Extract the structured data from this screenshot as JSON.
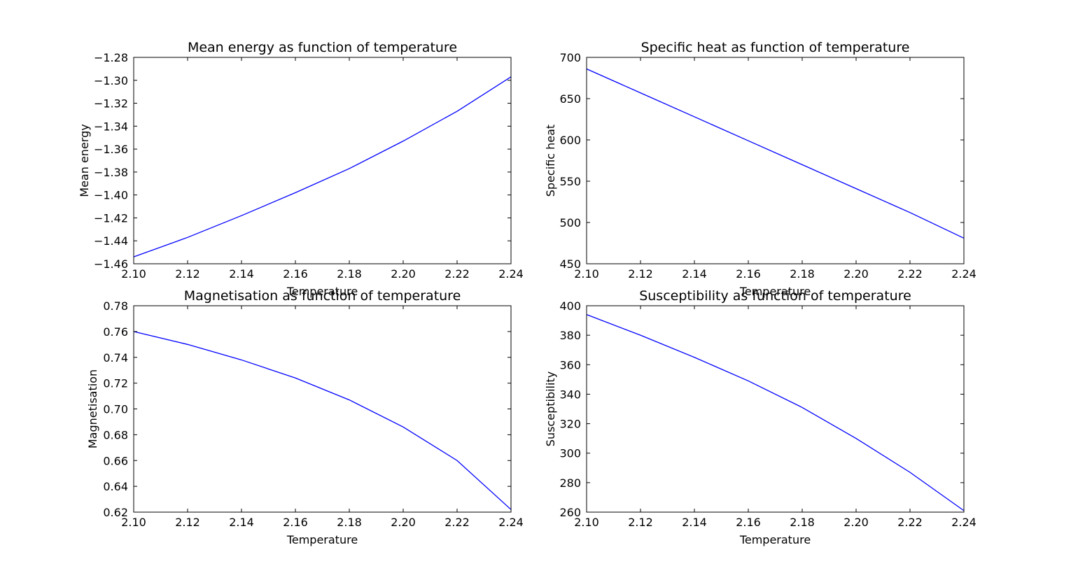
{
  "chart_data": [
    {
      "type": "line",
      "title": "Mean energy as function of temperature",
      "xlabel": "Temperature",
      "ylabel": "Mean energy",
      "xlim": [
        2.1,
        2.24
      ],
      "ylim": [
        -1.46,
        -1.28
      ],
      "xticks": [
        "2.10",
        "2.12",
        "2.14",
        "2.16",
        "2.18",
        "2.20",
        "2.22",
        "2.24"
      ],
      "yticks": [
        "−1.28",
        "−1.30",
        "−1.32",
        "−1.34",
        "−1.36",
        "−1.38",
        "−1.40",
        "−1.42",
        "−1.44",
        "−1.46"
      ],
      "grid": false,
      "line_color": "#0000ff",
      "series": [
        {
          "x": [
            2.1,
            2.12,
            2.14,
            2.16,
            2.18,
            2.2,
            2.22,
            2.24
          ],
          "y": [
            -1.454,
            -1.437,
            -1.418,
            -1.398,
            -1.377,
            -1.353,
            -1.327,
            -1.297
          ]
        }
      ]
    },
    {
      "type": "line",
      "title": "Specific heat as function of temperature",
      "xlabel": "Temperature",
      "ylabel": "Specific heat",
      "xlim": [
        2.1,
        2.24
      ],
      "ylim": [
        450,
        700
      ],
      "xticks": [
        "2.10",
        "2.12",
        "2.14",
        "2.16",
        "2.18",
        "2.20",
        "2.22",
        "2.24"
      ],
      "yticks": [
        "700",
        "650",
        "600",
        "550",
        "500",
        "450"
      ],
      "grid": false,
      "line_color": "#0000ff",
      "series": [
        {
          "x": [
            2.1,
            2.12,
            2.14,
            2.16,
            2.18,
            2.2,
            2.22,
            2.24
          ],
          "y": [
            686,
            657,
            628,
            599,
            570,
            541,
            512,
            481
          ]
        }
      ]
    },
    {
      "type": "line",
      "title": "Magnetisation as function of temperature",
      "xlabel": "Temperature",
      "ylabel": "Magnetisation",
      "xlim": [
        2.1,
        2.24
      ],
      "ylim": [
        0.62,
        0.78
      ],
      "xticks": [
        "2.10",
        "2.12",
        "2.14",
        "2.16",
        "2.18",
        "2.20",
        "2.22",
        "2.24"
      ],
      "yticks": [
        "0.78",
        "0.76",
        "0.74",
        "0.72",
        "0.70",
        "0.68",
        "0.66",
        "0.64",
        "0.62"
      ],
      "grid": false,
      "line_color": "#0000ff",
      "series": [
        {
          "x": [
            2.1,
            2.12,
            2.14,
            2.16,
            2.18,
            2.2,
            2.22,
            2.24
          ],
          "y": [
            0.76,
            0.75,
            0.738,
            0.724,
            0.707,
            0.686,
            0.66,
            0.622
          ]
        }
      ]
    },
    {
      "type": "line",
      "title": "Susceptibility as function of temperature",
      "xlabel": "Temperature",
      "ylabel": "Susceptibility",
      "xlim": [
        2.1,
        2.24
      ],
      "ylim": [
        260,
        400
      ],
      "xticks": [
        "2.10",
        "2.12",
        "2.14",
        "2.16",
        "2.18",
        "2.20",
        "2.22",
        "2.24"
      ],
      "yticks": [
        "400",
        "380",
        "360",
        "340",
        "320",
        "300",
        "280",
        "260"
      ],
      "grid": false,
      "line_color": "#0000ff",
      "series": [
        {
          "x": [
            2.1,
            2.12,
            2.14,
            2.16,
            2.18,
            2.2,
            2.22,
            2.24
          ],
          "y": [
            394,
            380,
            365,
            349,
            331,
            310,
            287,
            261
          ]
        }
      ]
    }
  ]
}
